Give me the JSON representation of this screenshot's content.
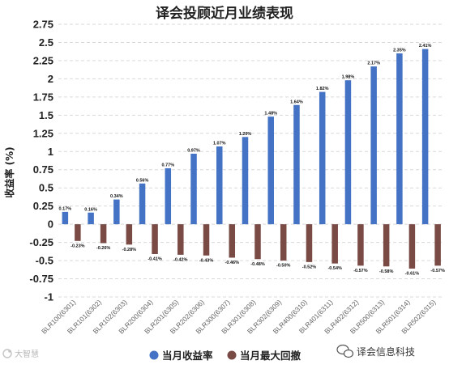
{
  "chart_data": {
    "type": "bar",
    "title": "译会投顾近月业绩表现",
    "ylabel": "收益率 (%)",
    "ylim": [
      -1,
      2.75
    ],
    "yticks": [
      "2.75",
      "2.5",
      "2.25",
      "2",
      "1.75",
      "1.5",
      "1.25",
      "1",
      "0.75",
      "0.5",
      "0.25",
      "0",
      "-0.25",
      "-0.5",
      "-0.75",
      "-1"
    ],
    "categories": [
      "BLR100(6301)",
      "BLR101(6302)",
      "BLR102(6303)",
      "BLR200(6304)",
      "BLR201(6305)",
      "BLR202(6306)",
      "BLR300(6307)",
      "BLR301(6308)",
      "BLR302(6309)",
      "BLR400(6310)",
      "BLR401(6311)",
      "BLR402(6312)",
      "BLR500(6313)",
      "BLR501(6314)",
      "BLR502(6315)"
    ],
    "grid": true,
    "legend_position": "bottom",
    "series": [
      {
        "name": "当月收益率",
        "color": "#4472c4",
        "values": [
          0.17,
          0.16,
          0.34,
          0.56,
          0.77,
          0.97,
          1.07,
          1.2,
          1.48,
          1.64,
          1.82,
          1.98,
          2.17,
          2.35,
          2.41
        ],
        "labels": [
          "0.17%",
          "0.16%",
          "0.34%",
          "0.56%",
          "0.77%",
          "0.97%",
          "1.07%",
          "1.20%",
          "1.48%",
          "1.64%",
          "1.82%",
          "1.98%",
          "2.17%",
          "2.35%",
          "2.41%"
        ]
      },
      {
        "name": "当月最大回撤",
        "color": "#7a4b45",
        "values": [
          -0.23,
          -0.26,
          -0.28,
          -0.41,
          -0.42,
          -0.43,
          -0.46,
          -0.48,
          -0.5,
          -0.52,
          -0.54,
          -0.57,
          -0.58,
          -0.61,
          -0.57
        ],
        "labels": [
          "-0.23%",
          "-0.26%",
          "-0.28%",
          "-0.41%",
          "-0.42%",
          "-0.43%",
          "-0.46%",
          "-0.48%",
          "-0.50%",
          "-0.52%",
          "-0.54%",
          "-0.57%",
          "-0.58%",
          "-0.61%",
          "-0.57%"
        ]
      }
    ]
  },
  "watermark": {
    "text": "大智慧",
    "icon": "dzh-logo-icon"
  },
  "brand": {
    "text": "译会信息科技",
    "icon": "wechat-icon"
  }
}
